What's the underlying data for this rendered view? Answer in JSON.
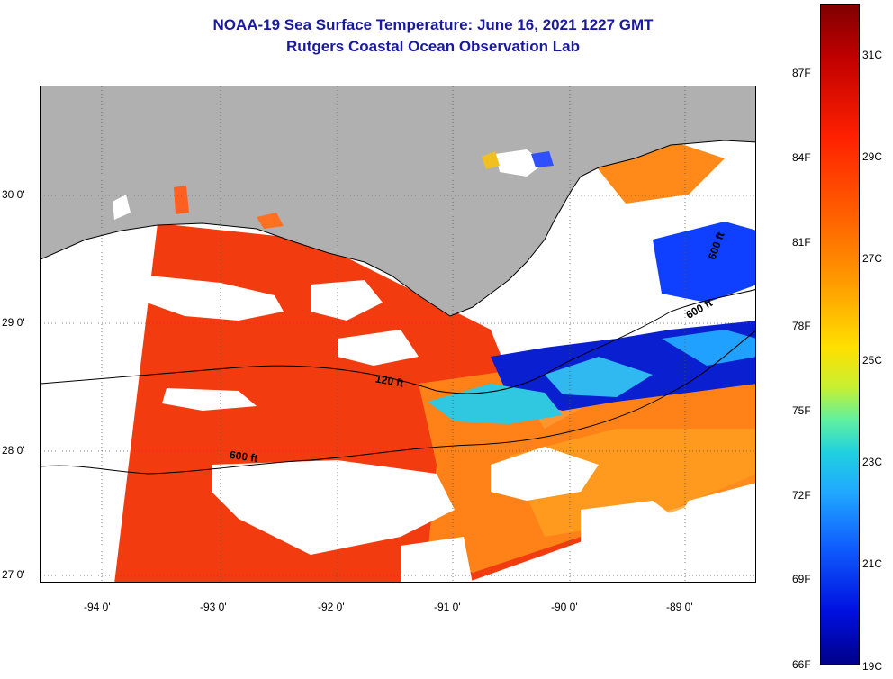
{
  "title": {
    "line1": "NOAA-19 Sea Surface Temperature:  June 16, 2021 1227 GMT",
    "line2": "Rutgers Coastal Ocean Observation Lab"
  },
  "map": {
    "latitude_labels": [
      "30 0'",
      "29 0'",
      "28 0'",
      "27 0'"
    ],
    "longitude_labels": [
      "-94 0'",
      "-93 0'",
      "-92 0'",
      "-91 0'",
      "-90 0'",
      "-89 0'"
    ],
    "contour_labels": [
      "120 ft",
      "600 ft",
      "600 ft",
      "600 ft"
    ],
    "land_color": "#b0b0b0",
    "cloud_color": "#ffffff"
  },
  "colorbar": {
    "fahrenheit_labels": [
      "87F",
      "84F",
      "81F",
      "78F",
      "75F",
      "72F",
      "69F",
      "66F"
    ],
    "celsius_labels": [
      "31C",
      "29C",
      "27C",
      "25C",
      "23C",
      "21C",
      "19C"
    ],
    "min_color": "#00008a",
    "max_color": "#800000"
  }
}
